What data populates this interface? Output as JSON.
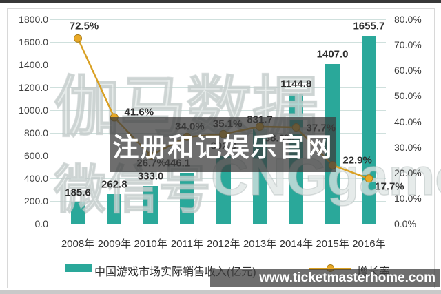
{
  "overlays": {
    "center_text": "注册和记娱乐官网",
    "site_url": "www.ticketmasterhome.com"
  },
  "watermarks": {
    "line1": "伽马数据",
    "line2_left": "微信号",
    "line2_right": "CNGgame"
  },
  "colors": {
    "bar": "#2aa89a",
    "line": "#d9a023",
    "marker_fill": "#e9a927",
    "marker_stroke": "#a67c1b",
    "gridline": "#cfe0dd",
    "overlay_bg": "rgba(60,60,60,0.74)"
  },
  "chart_data": {
    "type": "bar",
    "subtype": "combo bar+line, dual y-axis",
    "categories": [
      "2008年",
      "2009年",
      "2010年",
      "2011年",
      "2012年",
      "2013年",
      "2014年",
      "2015年",
      "2016年"
    ],
    "series": [
      {
        "name": "中国游戏市场实际销售收入(亿元)",
        "type": "bar",
        "axis": "left",
        "color": "#2aa89a",
        "values": [
          185.6,
          262.8,
          333.0,
          446.1,
          602.8,
          831.7,
          1144.8,
          1407.0,
          1655.7
        ]
      },
      {
        "name": "增长率",
        "type": "line",
        "axis": "right",
        "unit": "%",
        "color": "#d9a023",
        "values": [
          72.5,
          41.6,
          26.7,
          34.0,
          35.1,
          38.0,
          37.7,
          22.9,
          17.7
        ]
      }
    ],
    "left_axis": {
      "min": 0,
      "max": 1800,
      "step": 200,
      "tick_labels": [
        "1800.0",
        "1600.0",
        "1400.0",
        "1200.0",
        "1000.0",
        "800.0",
        "600.0",
        "400.0",
        "200.0",
        "0.0"
      ]
    },
    "right_axis": {
      "min": 0,
      "max": 80,
      "step": 10,
      "tick_labels": [
        "80.0%",
        "70.0%",
        "60.0%",
        "50.0%",
        "40.0%",
        "30.0%",
        "20.0%",
        "10.0%",
        "0.0%"
      ]
    },
    "grid": true,
    "legend_position": "bottom",
    "title": ""
  }
}
